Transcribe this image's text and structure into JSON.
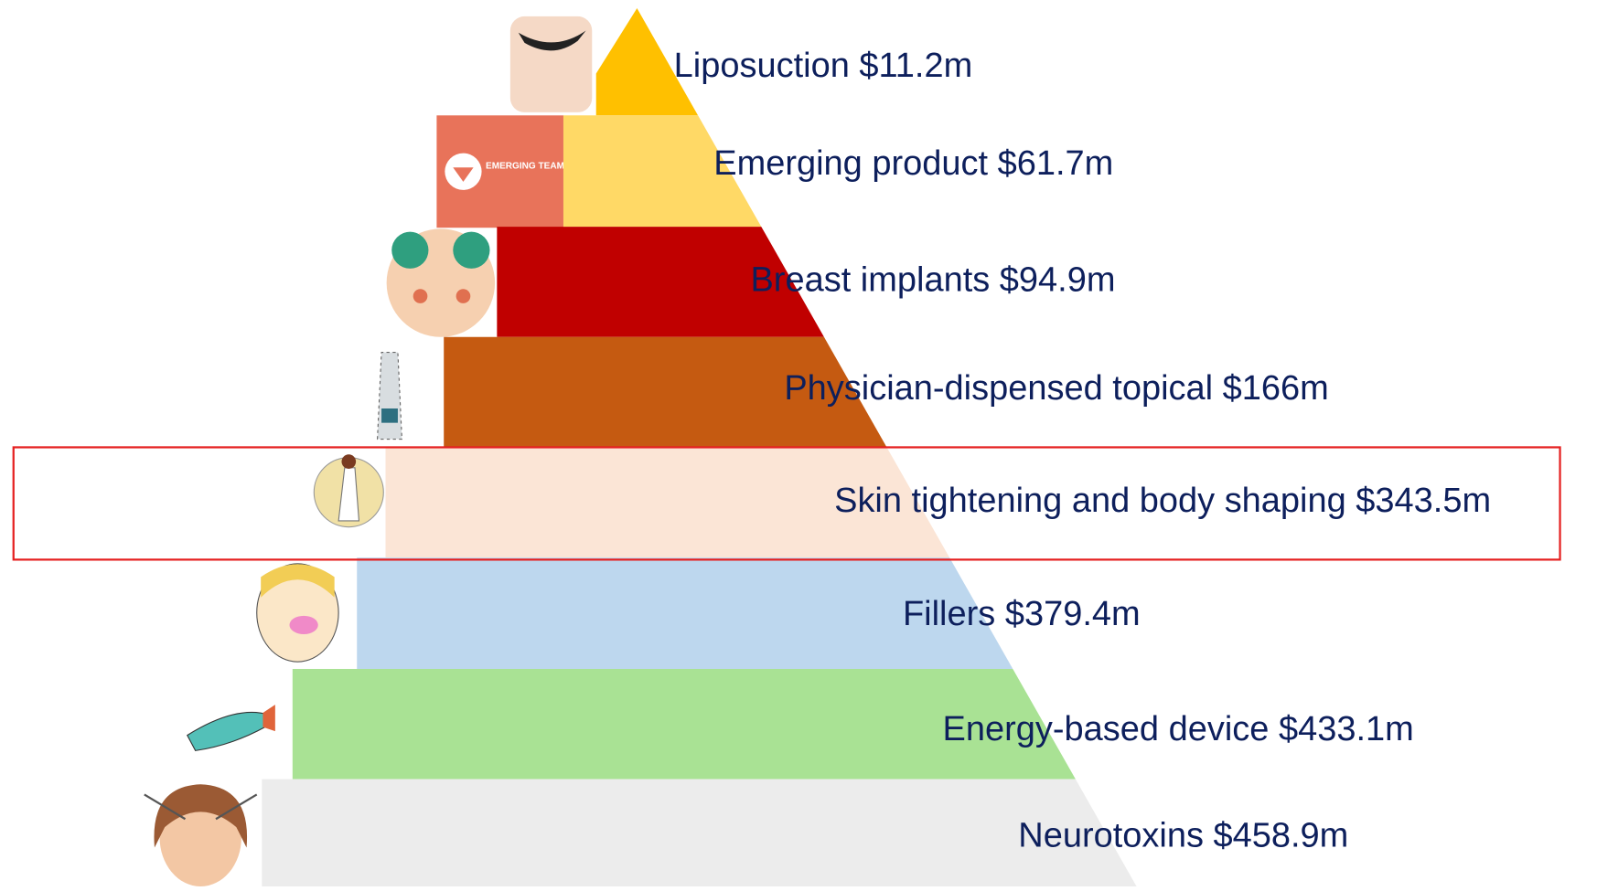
{
  "layers": [
    {
      "label": "Liposuction $11.2m",
      "color": "#ffc000"
    },
    {
      "label": "Emerging product $61.7m",
      "color": "#ffd966"
    },
    {
      "label": "Breast implants $94.9m",
      "color": "#c00000"
    },
    {
      "label": "Physician-dispensed topical $166m",
      "color": "#c55a11"
    },
    {
      "label": "Skin tightening and body shaping $343.5m",
      "color": "#fbe5d6"
    },
    {
      "label": "Fillers $379.4m",
      "color": "#bdd7ee"
    },
    {
      "label": "Energy-based device $433.1m",
      "color": "#a9e294"
    },
    {
      "label": "Neurotoxins $458.9m",
      "color": "#ececec"
    }
  ],
  "icon_text": "EMERGING TEAM"
}
